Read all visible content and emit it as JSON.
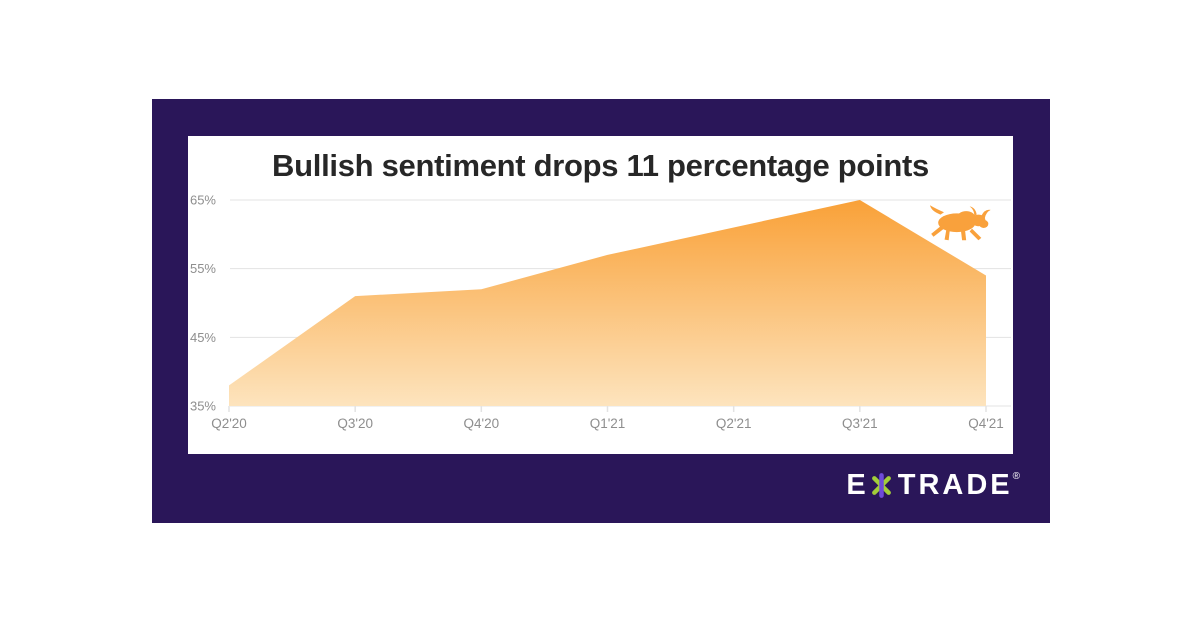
{
  "colors": {
    "page_bg": "#FFFFFF",
    "card_bg": "#2A1659",
    "panel_bg": "#FFFFFF",
    "title": "#272727",
    "grid": "#E3E3E3",
    "axis_text": "#8E8E8E",
    "area_top": "#F9A138",
    "area_bottom": "#FDE5C0",
    "bull": "#F9A13C",
    "logo_text": "#FFFFFF",
    "asterisk_green": "#A2CE39",
    "asterisk_purple": "#6E4BD9"
  },
  "chart_data": {
    "type": "area",
    "title": "Bullish sentiment drops 11 percentage points",
    "categories": [
      "Q2'20",
      "Q3'20",
      "Q4'20",
      "Q1'21",
      "Q2'21",
      "Q3'21",
      "Q4'21"
    ],
    "values": [
      38,
      51,
      52,
      57,
      61,
      65,
      54
    ],
    "unit": "%",
    "ylim": [
      35,
      65
    ],
    "y_ticks": [
      65,
      55,
      45,
      35
    ],
    "y_tick_labels": [
      "65%",
      "55%",
      "45%",
      "35%"
    ],
    "xlabel": "",
    "ylabel": "",
    "grid": true,
    "legend": "none",
    "annotation_icon": "bull near Q3'21 peak"
  },
  "logo": {
    "prefix": "E",
    "asterisk": "*",
    "suffix": "TRADE",
    "registered_mark": "®"
  }
}
